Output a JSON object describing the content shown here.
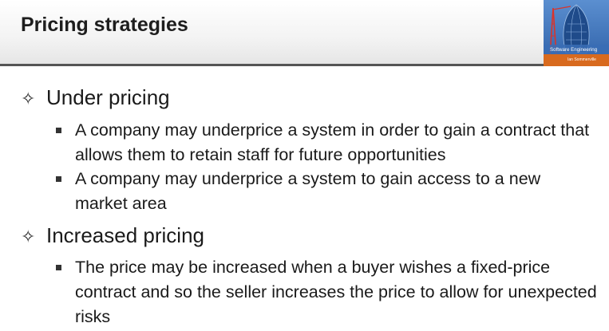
{
  "slide": {
    "title": "Pricing strategies",
    "cover": {
      "icon": "book-cover-image",
      "title": "Software Engineering",
      "author": "Ian Sommerville"
    },
    "bullets": [
      {
        "marker": "diamond-star-icon",
        "text": "Under pricing",
        "sub": [
          "A company may underprice a system in order to gain a contract that allows them to retain staff for future opportunities",
          "A company may underprice a system to gain access to a new market area"
        ]
      },
      {
        "marker": "diamond-star-icon",
        "text": "Increased pricing",
        "sub": [
          "The price may be increased when a buyer wishes a fixed-price contract and so the seller increases the price to allow for unexpected risks"
        ]
      }
    ]
  }
}
